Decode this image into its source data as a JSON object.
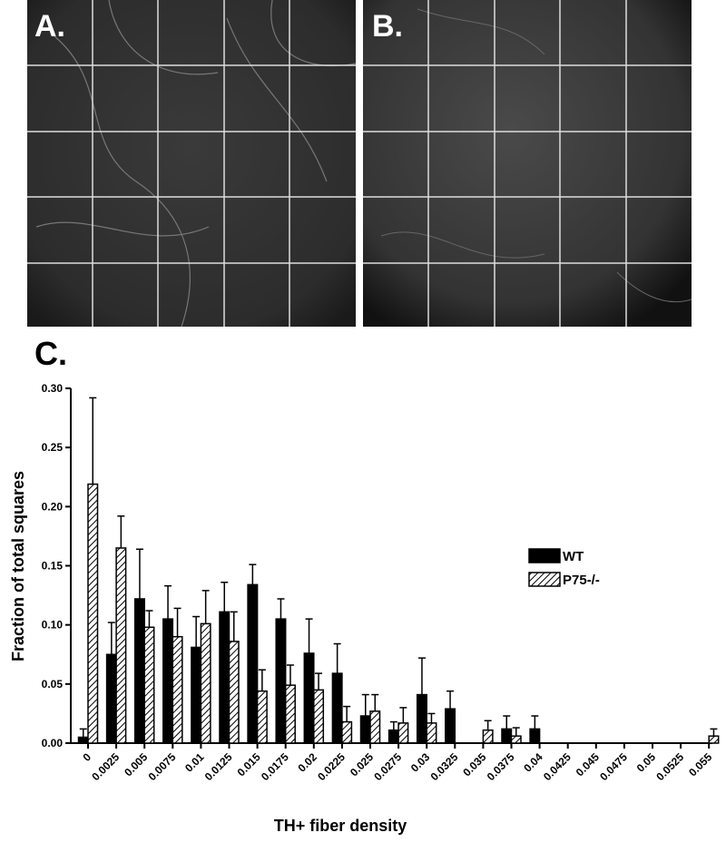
{
  "panel_labels": [
    "A.",
    "B.",
    "C."
  ],
  "chart_data": {
    "type": "bar",
    "x_label": "TH+ fiber density",
    "y_label": "Fraction of total squares",
    "categories": [
      "0",
      "0.0025",
      "0.005",
      "0.0075",
      "0.01",
      "0.0125",
      "0.015",
      "0.0175",
      "0.02",
      "0.0225",
      "0.025",
      "0.0275",
      "0.03",
      "0.0325",
      "0.035",
      "0.0375",
      "0.04",
      "0.0425",
      "0.045",
      "0.0475",
      "0.05",
      "0.0525",
      "0.055"
    ],
    "series": [
      {
        "name": "WT",
        "color": "#000000",
        "hatch": false,
        "values": [
          0.005,
          0.075,
          0.122,
          0.105,
          0.081,
          0.111,
          0.134,
          0.105,
          0.076,
          0.059,
          0.023,
          0.011,
          0.041,
          0.029,
          0,
          0.012,
          0.012,
          0,
          0,
          0,
          0,
          0,
          0
        ],
        "errors": [
          0.007,
          0.027,
          0.042,
          0.028,
          0.026,
          0.025,
          0.017,
          0.017,
          0.029,
          0.025,
          0.018,
          0.007,
          0.031,
          0.015,
          0,
          0.011,
          0.011,
          0,
          0,
          0,
          0,
          0,
          0
        ]
      },
      {
        "name": "P75-/-",
        "color": "#000000",
        "hatch": true,
        "values": [
          0.219,
          0.165,
          0.098,
          0.09,
          0.101,
          0.086,
          0.044,
          0.049,
          0.045,
          0.018,
          0.027,
          0.017,
          0.017,
          0,
          0.011,
          0.006,
          0,
          0,
          0,
          0,
          0,
          0,
          0.006
        ],
        "errors": [
          0.073,
          0.027,
          0.014,
          0.024,
          0.028,
          0.025,
          0.018,
          0.017,
          0.014,
          0.013,
          0.014,
          0.013,
          0.008,
          0,
          0.008,
          0.007,
          0,
          0,
          0,
          0,
          0,
          0,
          0.006
        ]
      }
    ],
    "ylim": [
      0,
      0.3
    ],
    "yticks": [
      {
        "value": 0,
        "label": "0.00"
      },
      {
        "value": 0.05,
        "label": "0.05"
      },
      {
        "value": 0.1,
        "label": "0.10"
      },
      {
        "value": 0.15,
        "label": "0.15"
      },
      {
        "value": 0.2,
        "label": "0.20"
      },
      {
        "value": 0.25,
        "label": "0.25"
      },
      {
        "value": 0.3,
        "label": "0.30"
      }
    ],
    "grid": false,
    "legend": "right"
  }
}
